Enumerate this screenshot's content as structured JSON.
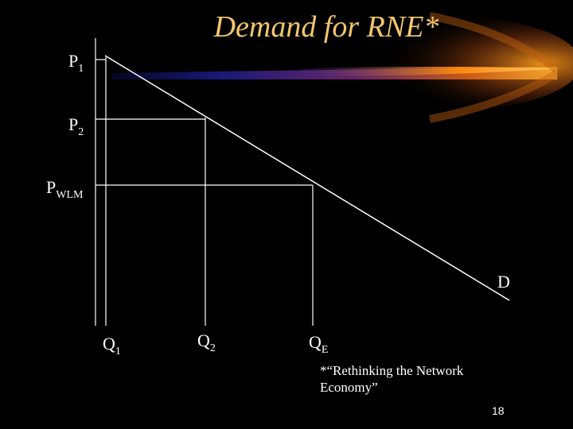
{
  "slide": {
    "title": "Demand for RNE*",
    "footnote": "*“Rethinking the Network Economy”",
    "page_number": "18"
  },
  "labels": {
    "p1": {
      "main": "P",
      "sub": "1"
    },
    "p2": {
      "main": "P",
      "sub": "2"
    },
    "pwlm": {
      "main": "P",
      "sub": "WLM"
    },
    "d": {
      "main": "D"
    },
    "q1": {
      "main": "Q",
      "sub": "1"
    },
    "q2": {
      "main": "Q",
      "sub": "2"
    },
    "qe": {
      "main": "Q",
      "sub": "E"
    }
  },
  "colors": {
    "background": "#000000",
    "title": "#f2c66d",
    "lines": "#ffffff",
    "streak_orange": "#ff9a1a",
    "streak_blue": "#1e1e8c"
  },
  "decoration": {
    "comet_streak": true
  }
}
